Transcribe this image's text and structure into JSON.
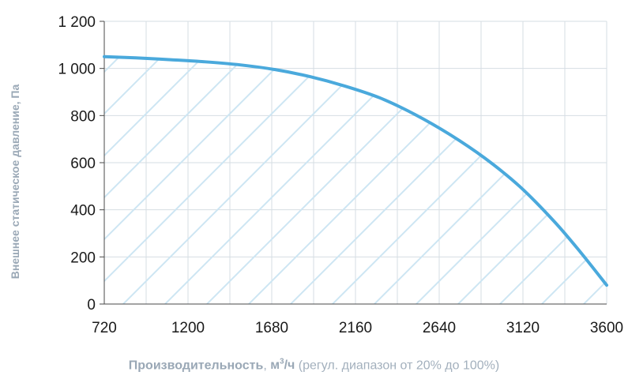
{
  "chart_data": {
    "type": "area",
    "title": "",
    "ylabel": "Внешнее статическое давление, Па",
    "xlabel": {
      "main": "Производительность",
      "sep": ", ",
      "unit": "м",
      "unit_sup": "3",
      "unit_tail": "/ч",
      "note": " (регул. диапазон от 20% до 100%)"
    },
    "xlim": [
      720,
      3600
    ],
    "ylim": [
      0,
      1200
    ],
    "x_ticks": [
      720,
      1200,
      1680,
      2160,
      2640,
      3120,
      3600
    ],
    "x_tick_labels": [
      "720",
      "1200",
      "1680",
      "2160",
      "2640",
      "3120",
      "3600"
    ],
    "x_grid": [
      720,
      960,
      1200,
      1440,
      1680,
      1920,
      2160,
      2400,
      2640,
      2880,
      3120,
      3360,
      3600
    ],
    "y_ticks": [
      0,
      200,
      400,
      600,
      800,
      1000,
      1200
    ],
    "y_tick_labels": [
      "0",
      "200",
      "400",
      "600",
      "800",
      "1 000",
      "1 200"
    ],
    "grid": true,
    "series": [
      {
        "color": "#4aa9dc",
        "hatch_color": "#cde6f3",
        "x": [
          720,
          900,
          1100,
          1300,
          1500,
          1700,
          1900,
          2100,
          2300,
          2500,
          2700,
          2900,
          3100,
          3300,
          3450,
          3600
        ],
        "y": [
          1050,
          1045,
          1037,
          1028,
          1015,
          995,
          965,
          925,
          875,
          805,
          720,
          620,
          500,
          350,
          220,
          80
        ]
      }
    ]
  }
}
